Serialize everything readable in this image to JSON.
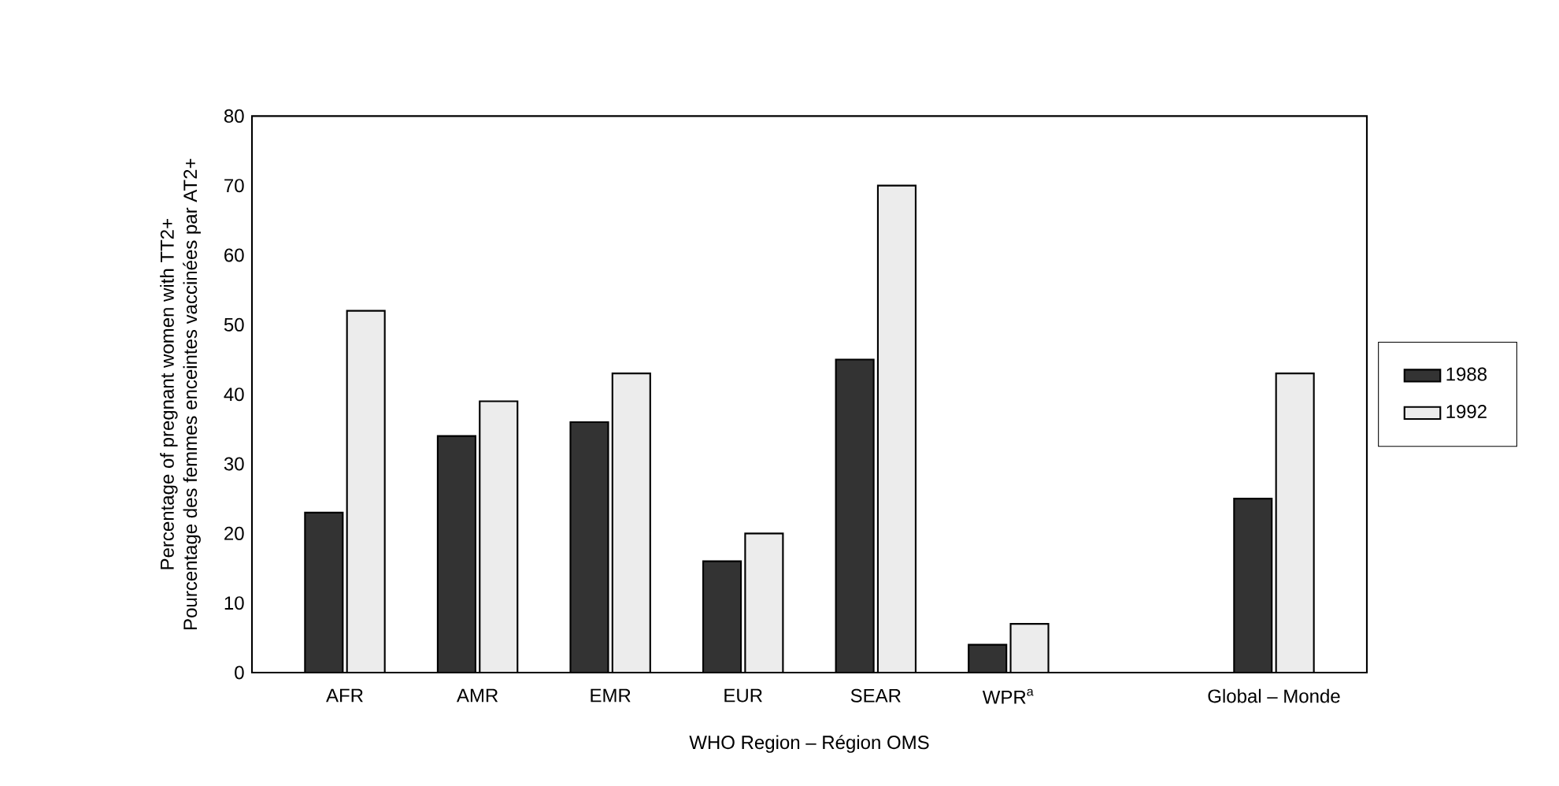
{
  "chart_data": {
    "type": "bar",
    "xlabel": "WHO Region – Région OMS",
    "ylabel": "Percentage of pregnant women with TT2+\nPourcentage des femmes enceintes vaccinées par AT2+",
    "categories": [
      "AFR",
      "AMR",
      "EMR",
      "EUR",
      "SEAR",
      "WPR$^{a}$",
      null,
      "Global – Monde"
    ],
    "series": [
      {
        "name": "1988",
        "color": "#333333",
        "values": [
          23,
          34,
          36,
          16,
          45,
          4,
          null,
          25
        ]
      },
      {
        "name": "1992",
        "color": "#ececec",
        "values": [
          52,
          39,
          43,
          20,
          70,
          7,
          null,
          43
        ]
      }
    ],
    "ylim": [
      0,
      80
    ],
    "yticks": [
      0,
      10,
      20,
      30,
      40,
      50,
      60,
      70,
      80
    ],
    "legend": "right"
  }
}
